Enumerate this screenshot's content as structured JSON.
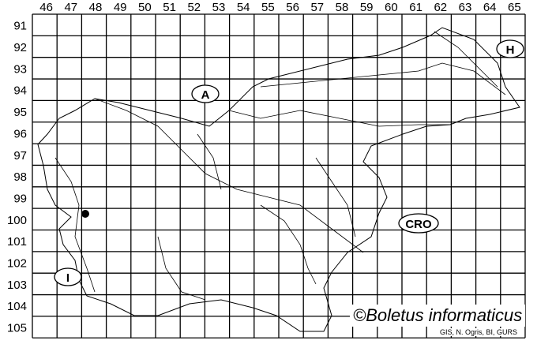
{
  "map": {
    "column_labels": [
      "46",
      "47",
      "48",
      "49",
      "50",
      "51",
      "52",
      "53",
      "54",
      "55",
      "56",
      "57",
      "58",
      "59",
      "60",
      "61",
      "62",
      "63",
      "64",
      "65"
    ],
    "row_labels": [
      "91",
      "92",
      "93",
      "94",
      "95",
      "96",
      "97",
      "98",
      "99",
      "100",
      "101",
      "102",
      "103",
      "104",
      "105"
    ],
    "country_labels": [
      {
        "id": "austria",
        "text": "A"
      },
      {
        "id": "hungary",
        "text": "H"
      },
      {
        "id": "italy",
        "text": "I"
      },
      {
        "id": "croatia",
        "text": "CRO"
      }
    ],
    "records": [
      {
        "column": "47/48",
        "row": "100",
        "marker": "filled-circle"
      }
    ],
    "copyright": "©Boletus informaticus",
    "source": "GIS, N. Ogris, BI, GURS"
  }
}
